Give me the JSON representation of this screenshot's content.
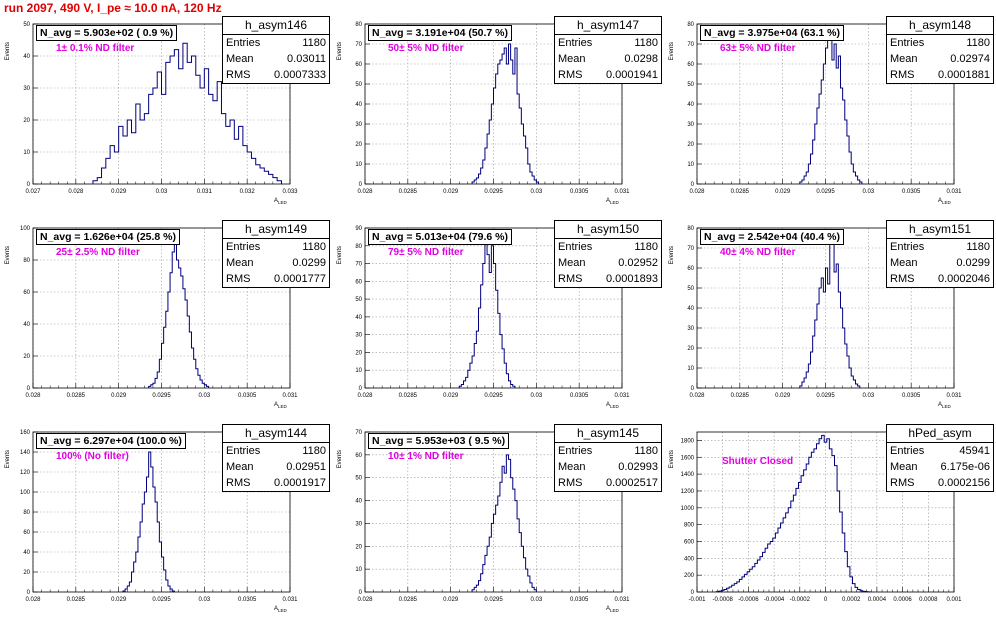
{
  "title": "run 2097,   490 V, I_pe ≈ 10.0 nA, 120 Hz",
  "stat_labels": {
    "entries": "Entries",
    "mean": "Mean",
    "rms": "RMS"
  },
  "colors": {
    "title": "#e00000",
    "histogram": "#00007f",
    "filter_text": "#e000e0",
    "grid": "#999999"
  },
  "panels": [
    {
      "hist_name": "h_asym146",
      "entries": "1180",
      "mean": "0.03011",
      "rms": "0.0007333",
      "navg": "N_avg = 5.903e+02 ( 0.9 %)",
      "filter": "1± 0.1% ND filter",
      "xlabel": "A_{LED}",
      "ylabel": "Events"
    },
    {
      "hist_name": "h_asym147",
      "entries": "1180",
      "mean": "0.0298",
      "rms": "0.0001941",
      "navg": "N_avg = 3.191e+04 (50.7 %)",
      "filter": "50± 5% ND filter",
      "xlabel": "A_{LED}",
      "ylabel": "Events"
    },
    {
      "hist_name": "h_asym148",
      "entries": "1180",
      "mean": "0.02974",
      "rms": "0.0001881",
      "navg": "N_avg = 3.975e+04 (63.1 %)",
      "filter": "63± 5% ND filter",
      "xlabel": "A_{LED}",
      "ylabel": "Events"
    },
    {
      "hist_name": "h_asym149",
      "entries": "1180",
      "mean": "0.0299",
      "rms": "0.0001777",
      "navg": "N_avg = 1.626e+04 (25.8 %)",
      "filter": "25± 2.5% ND filter",
      "xlabel": "A_{LED}",
      "ylabel": "Events"
    },
    {
      "hist_name": "h_asym150",
      "entries": "1180",
      "mean": "0.02952",
      "rms": "0.0001893",
      "navg": "N_avg = 5.013e+04 (79.6 %)",
      "filter": "79± 5% ND filter",
      "xlabel": "A_{LED}",
      "ylabel": "Events"
    },
    {
      "hist_name": "h_asym151",
      "entries": "1180",
      "mean": "0.0299",
      "rms": "0.0002046",
      "navg": "N_avg = 2.542e+04 (40.4 %)",
      "filter": "40± 4% ND filter",
      "xlabel": "A_{LED}",
      "ylabel": "Events"
    },
    {
      "hist_name": "h_asym144",
      "entries": "1180",
      "mean": "0.02951",
      "rms": "0.0001917",
      "navg": "N_avg = 6.297e+04 (100.0 %)",
      "filter": "100% (No filter)",
      "xlabel": "A_{LED}",
      "ylabel": "Events"
    },
    {
      "hist_name": "h_asym145",
      "entries": "1180",
      "mean": "0.02993",
      "rms": "0.0002517",
      "navg": "N_avg = 5.953e+03 ( 9.5 %)",
      "filter": "10± 1% ND filter",
      "xlabel": "A_{LED}",
      "ylabel": "Events"
    },
    {
      "hist_name": "hPed_asym",
      "entries": "45941",
      "mean": "6.175e-06",
      "rms": "0.0002156",
      "navg": "",
      "filter": "Shutter Closed",
      "xlabel": "",
      "ylabel": "Events"
    }
  ],
  "chart_data": [
    {
      "type": "histogram",
      "title": "h_asym146",
      "xlim": [
        0.027,
        0.033
      ],
      "ylim": [
        0,
        50
      ],
      "xticks": [
        "0.027",
        "0.028",
        "0.029",
        "0.03",
        "0.031",
        "0.032",
        "0.033"
      ],
      "xtick_values": [
        0.027,
        0.028,
        0.029,
        0.03,
        0.031,
        0.032,
        0.033
      ],
      "yticks": [
        0,
        10,
        20,
        30,
        40,
        50
      ],
      "bins": {
        "start": 0.0284,
        "width": 0.0001,
        "counts": [
          1,
          2,
          5,
          8,
          12,
          10,
          18,
          15,
          20,
          16,
          25,
          20,
          22,
          28,
          30,
          35,
          28,
          38,
          40,
          42,
          36,
          44,
          38,
          40,
          34,
          30,
          36,
          28,
          26,
          32,
          22,
          18,
          20,
          14,
          18,
          12,
          10,
          8,
          6,
          5,
          4,
          3,
          2,
          1
        ]
      }
    },
    {
      "type": "histogram",
      "title": "h_asym147",
      "xlim": [
        0.028,
        0.031
      ],
      "ylim": [
        0,
        80
      ],
      "xticks": [
        "0.028",
        "0.0285",
        "0.029",
        "0.0295",
        "0.03",
        "0.0305",
        "0.031"
      ],
      "xtick_values": [
        0.028,
        0.0285,
        0.029,
        0.0295,
        0.03,
        0.0305,
        0.031
      ],
      "yticks": [
        0,
        10,
        20,
        30,
        40,
        50,
        60,
        70,
        80
      ],
      "bins": {
        "start": 0.02925,
        "width": 2.5e-05,
        "counts": [
          1,
          2,
          3,
          5,
          8,
          12,
          18,
          25,
          32,
          40,
          48,
          55,
          60,
          62,
          65,
          68,
          60,
          70,
          62,
          55,
          68,
          45,
          38,
          30,
          24,
          18,
          10,
          6,
          4,
          2,
          1
        ]
      }
    },
    {
      "type": "histogram",
      "title": "h_asym148",
      "xlim": [
        0.028,
        0.031
      ],
      "ylim": [
        0,
        80
      ],
      "xticks": [
        "0.028",
        "0.0285",
        "0.029",
        "0.0295",
        "0.03",
        "0.0305",
        "0.031"
      ],
      "xtick_values": [
        0.028,
        0.0285,
        0.029,
        0.0295,
        0.03,
        0.0305,
        0.031
      ],
      "yticks": [
        0,
        10,
        20,
        30,
        40,
        50,
        60,
        70,
        80
      ],
      "bins": {
        "start": 0.0292,
        "width": 2.5e-05,
        "counts": [
          1,
          2,
          4,
          6,
          10,
          15,
          22,
          30,
          38,
          45,
          52,
          60,
          68,
          75,
          72,
          62,
          70,
          58,
          64,
          48,
          42,
          32,
          24,
          16,
          10,
          6,
          4,
          2,
          1
        ]
      }
    },
    {
      "type": "histogram",
      "title": "h_asym149",
      "xlim": [
        0.028,
        0.031
      ],
      "ylim": [
        0,
        100
      ],
      "xticks": [
        "0.028",
        "0.0285",
        "0.029",
        "0.0295",
        "0.03",
        "0.0305",
        "0.031"
      ],
      "xtick_values": [
        0.028,
        0.0285,
        0.029,
        0.0295,
        0.03,
        0.0305,
        0.031
      ],
      "yticks": [
        0,
        20,
        40,
        60,
        80,
        100
      ],
      "bins": {
        "start": 0.02935,
        "width": 2.5e-05,
        "counts": [
          1,
          2,
          3,
          6,
          10,
          18,
          28,
          38,
          48,
          60,
          72,
          85,
          95,
          80,
          75,
          70,
          62,
          55,
          45,
          35,
          25,
          18,
          12,
          8,
          5,
          3,
          2,
          1
        ]
      }
    },
    {
      "type": "histogram",
      "title": "h_asym150",
      "xlim": [
        0.028,
        0.031
      ],
      "ylim": [
        0,
        90
      ],
      "xticks": [
        "0.028",
        "0.0285",
        "0.029",
        "0.0295",
        "0.03",
        "0.0305",
        "0.031"
      ],
      "xtick_values": [
        0.028,
        0.0285,
        0.029,
        0.0295,
        0.03,
        0.0305,
        0.031
      ],
      "yticks": [
        0,
        10,
        20,
        30,
        40,
        50,
        60,
        70,
        80,
        90
      ],
      "bins": {
        "start": 0.0291,
        "width": 2.5e-05,
        "counts": [
          1,
          2,
          4,
          6,
          10,
          14,
          18,
          25,
          32,
          45,
          58,
          70,
          85,
          75,
          65,
          80,
          70,
          55,
          42,
          30,
          22,
          14,
          8,
          4,
          2,
          1
        ]
      }
    },
    {
      "type": "histogram",
      "title": "h_asym151",
      "xlim": [
        0.028,
        0.031
      ],
      "ylim": [
        0,
        80
      ],
      "xticks": [
        "0.028",
        "0.0285",
        "0.029",
        "0.0295",
        "0.03",
        "0.0305",
        "0.031"
      ],
      "xtick_values": [
        0.028,
        0.0285,
        0.029,
        0.0295,
        0.03,
        0.0305,
        0.031
      ],
      "yticks": [
        0,
        10,
        20,
        30,
        40,
        50,
        60,
        70,
        80
      ],
      "bins": {
        "start": 0.0292,
        "width": 2.5e-05,
        "counts": [
          1,
          3,
          5,
          8,
          12,
          18,
          26,
          34,
          42,
          50,
          55,
          48,
          60,
          52,
          72,
          75,
          58,
          62,
          48,
          40,
          30,
          22,
          16,
          10,
          6,
          4,
          2,
          1
        ]
      }
    },
    {
      "type": "histogram",
      "title": "h_asym144",
      "xlim": [
        0.028,
        0.031
      ],
      "ylim": [
        0,
        160
      ],
      "xticks": [
        "0.028",
        "0.0285",
        "0.029",
        "0.0295",
        "0.03",
        "0.0305",
        "0.031"
      ],
      "xtick_values": [
        0.028,
        0.0285,
        0.029,
        0.0295,
        0.03,
        0.0305,
        0.031
      ],
      "yticks": [
        0,
        20,
        40,
        60,
        80,
        100,
        120,
        140,
        160
      ],
      "bins": {
        "start": 0.02905,
        "width": 2.5e-05,
        "counts": [
          1,
          3,
          6,
          10,
          20,
          30,
          40,
          55,
          70,
          88,
          100,
          115,
          140,
          125,
          105,
          90,
          70,
          50,
          35,
          22,
          12,
          6,
          3,
          1
        ]
      }
    },
    {
      "type": "histogram",
      "title": "h_asym145",
      "xlim": [
        0.028,
        0.031
      ],
      "ylim": [
        0,
        70
      ],
      "xticks": [
        "0.028",
        "0.0285",
        "0.029",
        "0.0295",
        "0.03",
        "0.0305",
        "0.031"
      ],
      "xtick_values": [
        0.028,
        0.0285,
        0.029,
        0.0295,
        0.03,
        0.0305,
        0.031
      ],
      "yticks": [
        0,
        10,
        20,
        30,
        40,
        50,
        60,
        70
      ],
      "bins": {
        "start": 0.02925,
        "width": 2.5e-05,
        "counts": [
          1,
          2,
          3,
          5,
          8,
          12,
          16,
          20,
          24,
          30,
          34,
          38,
          42,
          48,
          55,
          52,
          60,
          58,
          50,
          45,
          40,
          32,
          26,
          20,
          15,
          10,
          7,
          4,
          2,
          1
        ]
      }
    },
    {
      "type": "histogram",
      "title": "hPed_asym",
      "xlim": [
        -0.001,
        0.001
      ],
      "ylim": [
        0,
        1900
      ],
      "xticks": [
        "-0.001",
        "-0.0008",
        "-0.0006",
        "-0.0004",
        "-0.0002",
        "0",
        "0.0002",
        "0.0004",
        "0.0006",
        "0.0008",
        "0.001"
      ],
      "xtick_values": [
        -0.001,
        -0.0008,
        -0.0006,
        -0.0004,
        -0.0002,
        0,
        0.0002,
        0.0004,
        0.0006,
        0.0008,
        0.001
      ],
      "yticks": [
        0,
        200,
        400,
        600,
        800,
        1000,
        1200,
        1400,
        1600,
        1800
      ],
      "bins": {
        "start": -0.00085,
        "width": 2e-05,
        "counts": [
          5,
          10,
          20,
          30,
          45,
          60,
          80,
          100,
          120,
          150,
          180,
          210,
          240,
          270,
          300,
          340,
          380,
          420,
          470,
          520,
          570,
          600,
          640,
          700,
          760,
          820,
          880,
          940,
          1000,
          1080,
          1150,
          1230,
          1300,
          1380,
          1450,
          1520,
          1600,
          1660,
          1700,
          1760,
          1820,
          1860,
          1780,
          1820,
          1700,
          1620,
          1500,
          1200,
          950,
          700,
          480,
          300,
          180,
          100,
          55,
          30,
          15,
          8,
          4,
          2
        ]
      }
    }
  ]
}
